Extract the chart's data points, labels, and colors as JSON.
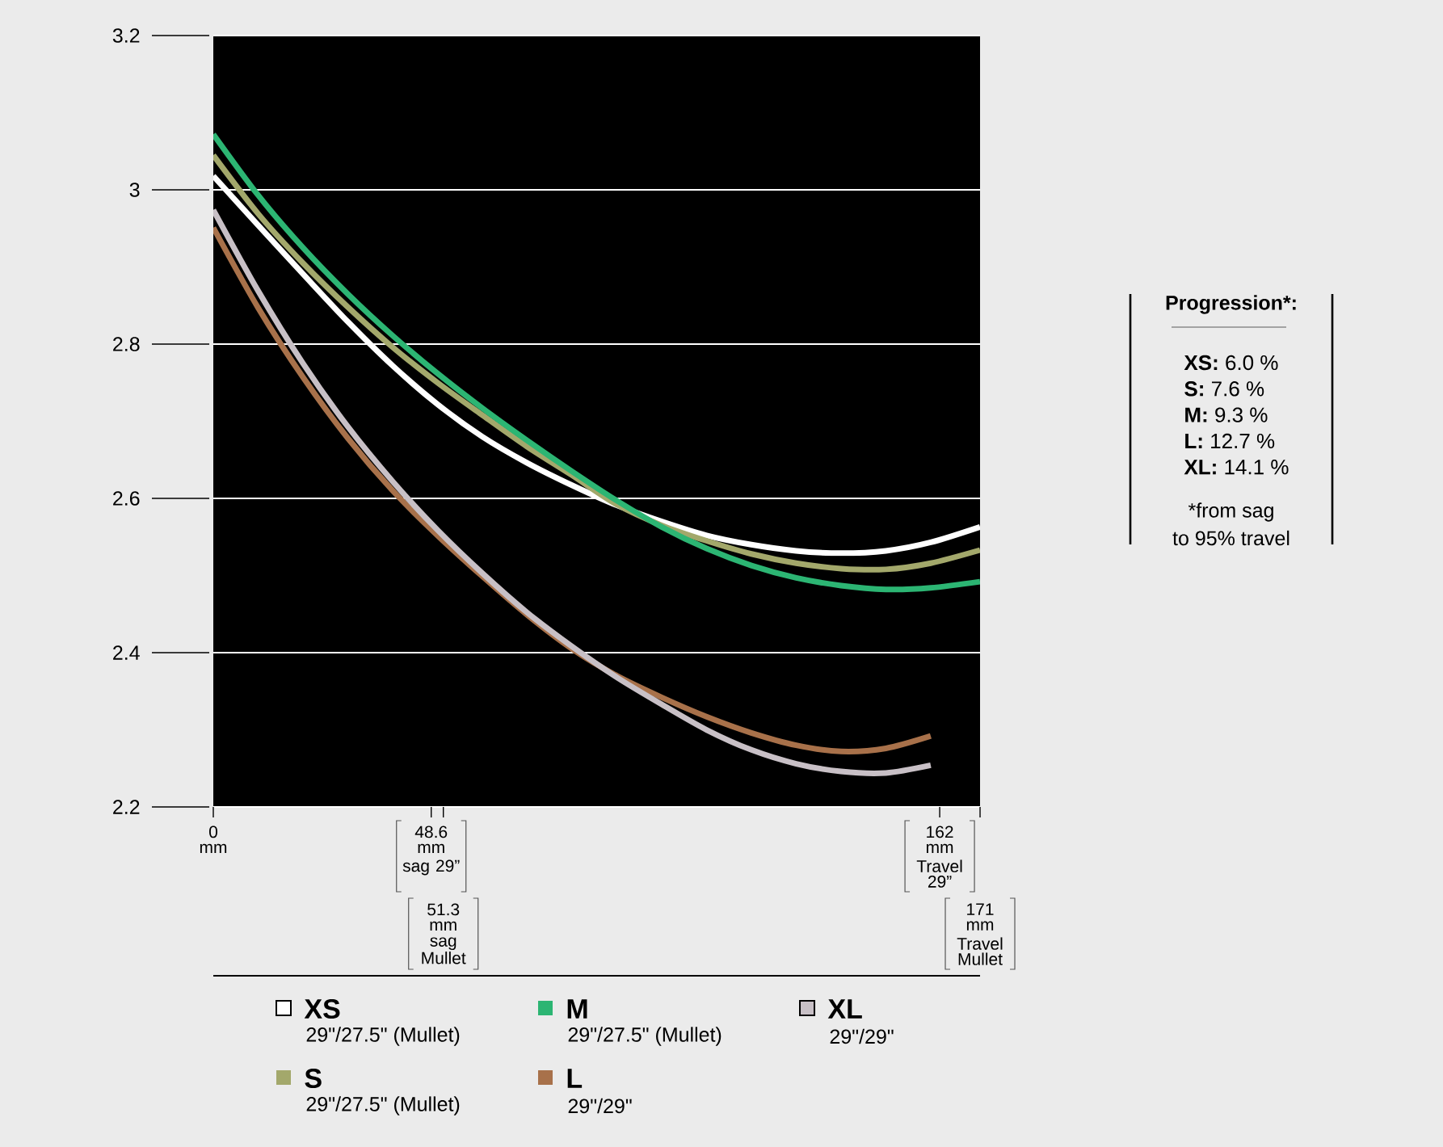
{
  "chart_data": {
    "type": "line",
    "x": [
      0,
      10,
      20,
      30,
      40,
      50,
      60,
      70,
      80,
      90,
      100,
      110,
      120,
      130,
      140,
      150,
      160,
      171
    ],
    "xlim": [
      0,
      171
    ],
    "ylim": [
      2.2,
      3.2
    ],
    "xticks": [
      {
        "value": 0,
        "label": "0 mm"
      },
      {
        "value": 48.6,
        "label": "48.6 mm"
      },
      {
        "value": 162,
        "label": "162 mm"
      }
    ],
    "x2lim": [
      0,
      171
    ],
    "x2ticks": [
      {
        "value": 51.3,
        "label": "51.3 mm"
      },
      {
        "value": 171,
        "label": "171 mm"
      }
    ],
    "yticks": [
      2.2,
      2.4,
      2.6,
      2.8,
      3,
      3.2
    ],
    "grid": "y",
    "legend": "bottom",
    "series": [
      {
        "name": "XS",
        "color": "#ffffff",
        "values": [
          3.018,
          2.954,
          2.891,
          2.829,
          2.772,
          2.722,
          2.68,
          2.646,
          2.617,
          2.591,
          2.57,
          2.552,
          2.54,
          2.532,
          2.529,
          2.532,
          2.543,
          2.563
        ]
      },
      {
        "name": "S",
        "color": "#a3a86b",
        "values": [
          3.045,
          2.969,
          2.905,
          2.848,
          2.796,
          2.75,
          2.708,
          2.667,
          2.63,
          2.592,
          2.565,
          2.545,
          2.528,
          2.516,
          2.509,
          2.508,
          2.516,
          2.533
        ]
      },
      {
        "name": "M",
        "color": "#2cb573",
        "values": [
          3.072,
          2.993,
          2.925,
          2.865,
          2.811,
          2.762,
          2.717,
          2.675,
          2.635,
          2.597,
          2.563,
          2.535,
          2.513,
          2.497,
          2.487,
          2.482,
          2.484,
          2.492
        ]
      },
      {
        "name": "L",
        "color": "#a8714a",
        "x": [
          0,
          10,
          20,
          30,
          40,
          50,
          60,
          70,
          80,
          90,
          100,
          110,
          120,
          130,
          140,
          150,
          160
        ],
        "values": [
          2.951,
          2.847,
          2.757,
          2.678,
          2.61,
          2.552,
          2.499,
          2.449,
          2.405,
          2.37,
          2.342,
          2.317,
          2.296,
          2.28,
          2.272,
          2.276,
          2.292
        ]
      },
      {
        "name": "XL",
        "color": "#c8c0c6",
        "x": [
          0,
          10,
          20,
          30,
          40,
          50,
          60,
          70,
          80,
          90,
          100,
          110,
          120,
          130,
          140,
          150,
          160
        ],
        "values": [
          2.974,
          2.869,
          2.775,
          2.693,
          2.622,
          2.559,
          2.503,
          2.452,
          2.408,
          2.368,
          2.333,
          2.3,
          2.274,
          2.256,
          2.246,
          2.244,
          2.254
        ]
      }
    ],
    "annotations": [
      "Progression*:",
      "**XS:** 6.0 %",
      "**S:** 7.6 %",
      "**M:** 9.3 %",
      "**L:** 12.7 %",
      "**XL:** 14.1 %",
      "*from sag",
      "to 95% travel",
      "29\"/27.5\" (Mullet)",
      "29\"/27.5\" (Mullet)",
      "29\"/27.5\" (Mullet)",
      "29\"/29\"",
      "29\"/29\"",
      "sag 29”",
      "sag Mullet",
      "Travel 29”",
      "Travel Mullet"
    ]
  }
}
